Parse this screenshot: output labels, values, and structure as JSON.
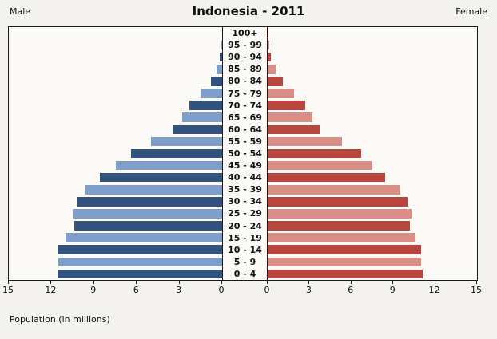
{
  "header": {
    "male_label": "Male",
    "title": "Indonesia - 2011",
    "female_label": "Female"
  },
  "footer": {
    "caption": "Population (in millions)"
  },
  "axis": {
    "left_ticks": [
      15,
      12,
      9,
      6,
      3,
      0
    ],
    "right_ticks": [
      0,
      3,
      6,
      9,
      12,
      15
    ],
    "max": 15
  },
  "colors": {
    "male_dark": "#31537e",
    "male_light": "#7f9fca",
    "female_dark": "#b8463f",
    "female_light": "#d98f88",
    "axis": "#1a1a1a"
  },
  "chart_data": {
    "type": "bar",
    "subtype": "population-pyramid",
    "title": "Indonesia - 2011",
    "xlabel": "Population (in millions)",
    "xlim": [
      0,
      15
    ],
    "categories": [
      "100+",
      "95 - 99",
      "90 - 94",
      "85 - 89",
      "80 - 84",
      "75 - 79",
      "70 - 74",
      "65 - 69",
      "60 - 64",
      "55 - 59",
      "50 - 54",
      "45 - 49",
      "40 - 44",
      "35 - 39",
      "30 - 34",
      "25 - 29",
      "20 - 24",
      "15 - 19",
      "10 - 14",
      "5 - 9",
      "0 - 4"
    ],
    "series": [
      {
        "name": "Male",
        "values": [
          0.02,
          0.05,
          0.15,
          0.4,
          0.8,
          1.5,
          2.3,
          2.8,
          3.5,
          5.0,
          6.4,
          7.5,
          8.6,
          9.6,
          10.2,
          10.5,
          10.4,
          11.0,
          11.6,
          11.5,
          11.6
        ]
      },
      {
        "name": "Female",
        "values": [
          0.05,
          0.1,
          0.25,
          0.6,
          1.1,
          1.9,
          2.7,
          3.2,
          3.7,
          5.3,
          6.7,
          7.5,
          8.4,
          9.5,
          10.0,
          10.3,
          10.2,
          10.6,
          11.0,
          11.0,
          11.1
        ]
      }
    ],
    "legend": "none",
    "grid": "off"
  }
}
